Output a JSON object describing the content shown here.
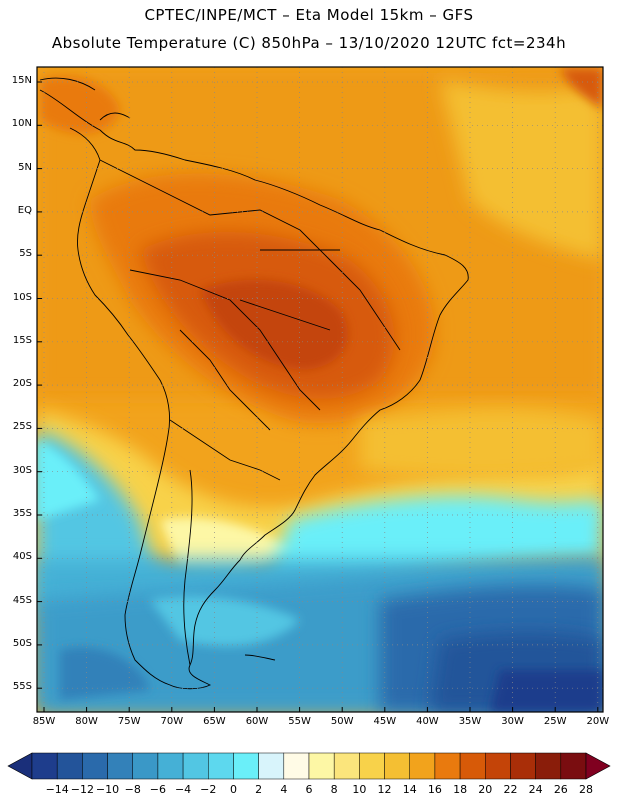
{
  "header": {
    "line1": "CPTEC/INPE/MCT –  Eta Model 15km – GFS",
    "line2": "Absolute Temperature (C) 850hPa – 13/10/2020 12UTC fct=234h"
  },
  "map": {
    "lat_labels": [
      "15N",
      "10N",
      "5N",
      "EQ",
      "5S",
      "10S",
      "15S",
      "20S",
      "25S",
      "30S",
      "35S",
      "40S",
      "45S",
      "50S",
      "55S"
    ],
    "lon_labels": [
      "85W",
      "80W",
      "75W",
      "70W",
      "65W",
      "60W",
      "55W",
      "50W",
      "45W",
      "40W",
      "35W",
      "30W",
      "25W",
      "20W"
    ],
    "field": "850hPa temperature (C)",
    "region": "South America"
  },
  "colorbar": {
    "labels": [
      "-14",
      "-12",
      "-10",
      "-8",
      "-6",
      "-4",
      "-2",
      "0",
      "2",
      "4",
      "6",
      "8",
      "10",
      "12",
      "14",
      "16",
      "18",
      "20",
      "22",
      "24",
      "26",
      "28"
    ],
    "colors": [
      "#1e3d8c",
      "#23549a",
      "#2a6aab",
      "#3381b9",
      "#3a98c7",
      "#45b0d6",
      "#52c6e3",
      "#5dd8ee",
      "#6aeff9",
      "#d8f4fb",
      "#fffbe6",
      "#fdf7a5",
      "#fbe57c",
      "#f8d24a",
      "#f4bf33",
      "#f2a31c",
      "#e97a0e",
      "#d75a08",
      "#c44408",
      "#a92e08",
      "#8a1d0a",
      "#7a0d10"
    ],
    "under_color": "#1a2f7a",
    "over_color": "#800020"
  }
}
